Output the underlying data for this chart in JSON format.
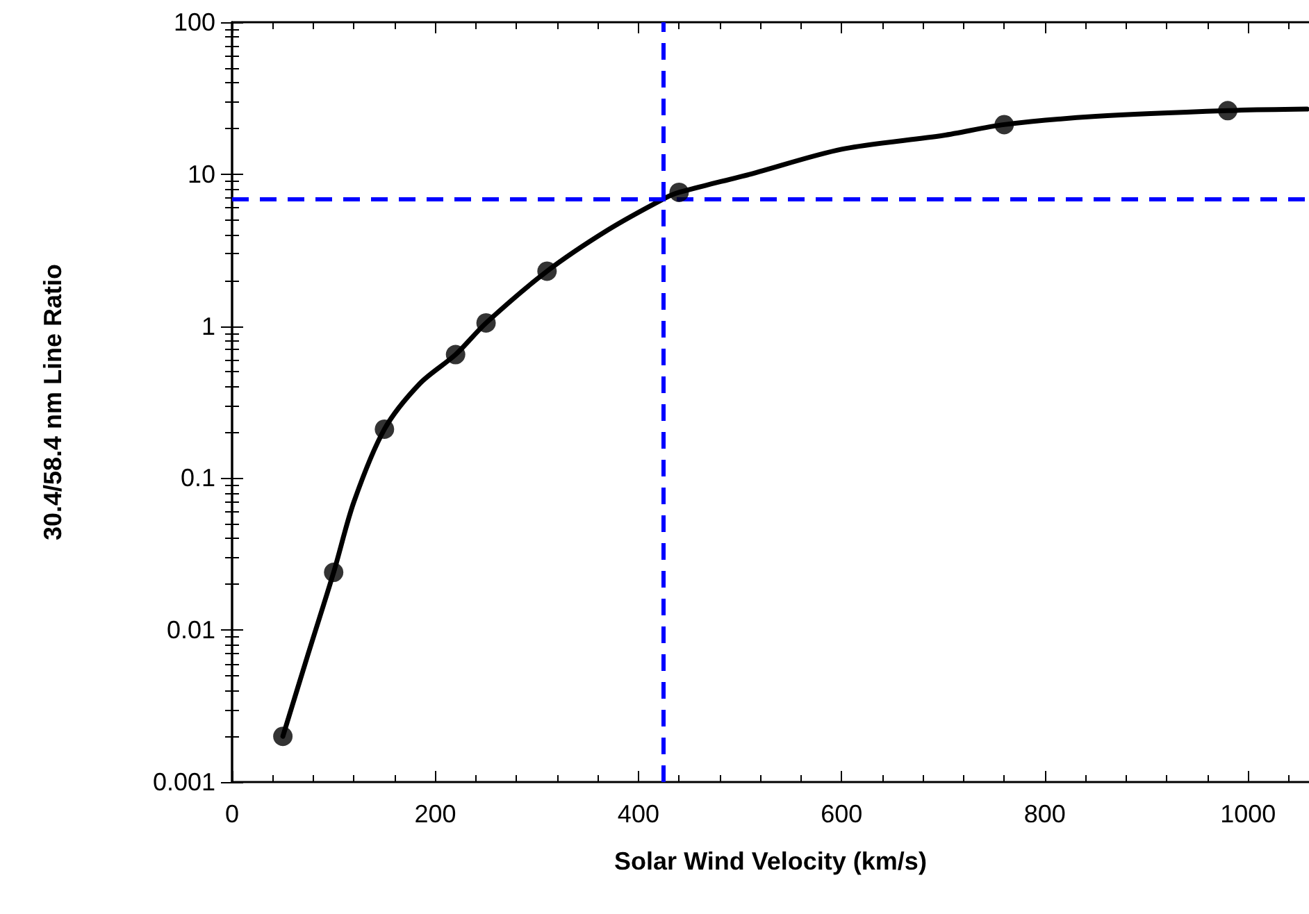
{
  "chart_data": {
    "type": "scatter",
    "xlabel": "Solar Wind Velocity (km/s)",
    "ylabel": "30.4/58.4 nm Line Ratio",
    "log": "y",
    "grid": false,
    "xlim": [
      0,
      1060
    ],
    "xticks": [
      0,
      200,
      400,
      600,
      800,
      1000
    ],
    "ylim": [
      0.001,
      100
    ],
    "yticks": [
      0.001,
      0.01,
      0.1,
      1,
      10,
      100
    ],
    "series": [
      {
        "type": "line",
        "marker": "none",
        "line_style": "solid",
        "color": "#000000",
        "x": [
          50,
          75,
          100,
          120,
          150,
          185,
          220,
          250,
          310,
          370,
          425,
          440,
          510,
          600,
          700,
          760,
          850,
          980,
          1058
        ],
        "values": [
          0.002,
          0.007,
          0.024,
          0.07,
          0.21,
          0.42,
          0.65,
          1.05,
          2.3,
          4.3,
          6.9,
          7.6,
          10,
          14.6,
          18,
          21.2,
          24,
          26.2,
          26.8
        ]
      },
      {
        "type": "scatter",
        "marker": "circle",
        "color": "#000000",
        "x": [
          50,
          100,
          150,
          220,
          250,
          310,
          440,
          760,
          980
        ],
        "values": [
          0.002,
          0.024,
          0.21,
          0.65,
          1.05,
          2.3,
          7.6,
          21.2,
          26.2
        ]
      }
    ],
    "ref_lines": [
      {
        "axis": "x",
        "value": 425,
        "color": "#0000ff",
        "line_style": "dashed"
      },
      {
        "axis": "y",
        "value": 6.9,
        "color": "#0000ff",
        "line_style": "dashed"
      }
    ]
  }
}
